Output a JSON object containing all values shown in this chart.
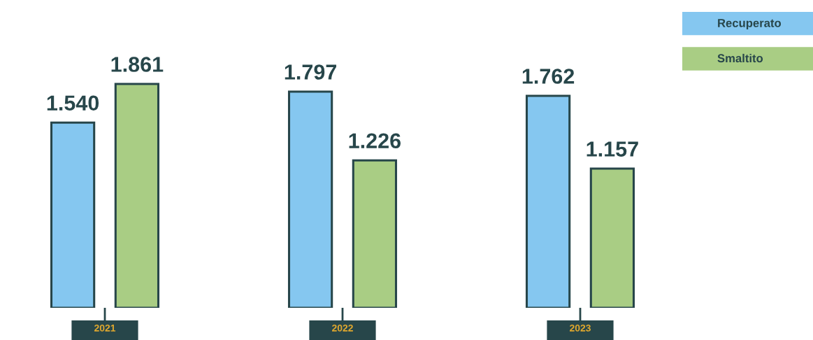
{
  "chart_data": {
    "type": "bar",
    "categories": [
      "2021",
      "2022",
      "2023"
    ],
    "series": [
      {
        "name": "Recuperato",
        "color": "#85c7f0",
        "values": [
          1540,
          1797,
          1762
        ],
        "value_labels": [
          "1.540",
          "1.797",
          "1.762"
        ]
      },
      {
        "name": "Smaltito",
        "color": "#a9cd84",
        "values": [
          1861,
          1226,
          1157
        ],
        "value_labels": [
          "1.861",
          "1.226",
          "1.157"
        ]
      }
    ],
    "legend": "top right",
    "grid": false
  }
}
